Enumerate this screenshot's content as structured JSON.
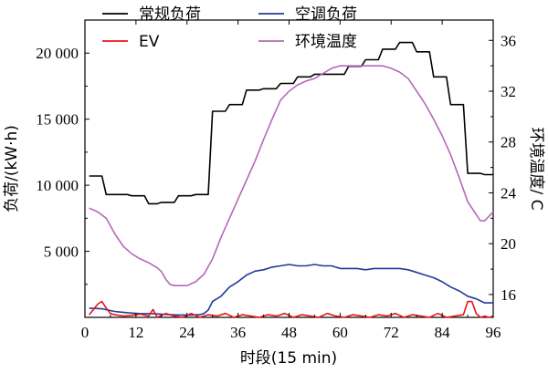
{
  "chart_data": {
    "type": "line",
    "xlabel": "时段(15 min)",
    "ylabel": "负荷/(kW·h)",
    "y2label": "环境温度/ C",
    "xlim": [
      0,
      96
    ],
    "ylim": [
      0,
      22500
    ],
    "y2lim": [
      14.2,
      37.6
    ],
    "x_ticks": [
      0,
      12,
      24,
      36,
      48,
      60,
      72,
      84,
      96
    ],
    "x_tick_labels": [
      "0",
      "12",
      "24",
      "36",
      "48",
      "60",
      "72",
      "84",
      "96"
    ],
    "y_ticks": [
      5000,
      10000,
      15000,
      20000
    ],
    "y_tick_labels": [
      "5 000",
      "10 000",
      "15 000",
      "20 000"
    ],
    "y2_ticks": [
      16,
      20,
      24,
      28,
      32,
      36
    ],
    "y2_tick_labels": [
      "16",
      "20",
      "24",
      "28",
      "32",
      "36"
    ],
    "legend_position": "top",
    "series": [
      {
        "name": "常规负荷",
        "axis": "left",
        "color": "#000000",
        "x": [
          1,
          2,
          3,
          4,
          5,
          6,
          7,
          8,
          9,
          10,
          11,
          12,
          13,
          14,
          15,
          16,
          17,
          18,
          19,
          20,
          21,
          22,
          23,
          24,
          25,
          26,
          27,
          28,
          29,
          30,
          31,
          32,
          33,
          34,
          35,
          36,
          37,
          38,
          39,
          40,
          41,
          42,
          43,
          44,
          45,
          46,
          47,
          48,
          49,
          50,
          51,
          52,
          53,
          54,
          55,
          56,
          57,
          58,
          59,
          60,
          61,
          62,
          63,
          64,
          65,
          66,
          67,
          68,
          69,
          70,
          71,
          72,
          73,
          74,
          75,
          76,
          77,
          78,
          79,
          80,
          81,
          82,
          83,
          84,
          85,
          86,
          87,
          88,
          89,
          90,
          91,
          92,
          93,
          94,
          95,
          96
        ],
        "values": [
          10700,
          10700,
          10700,
          10700,
          9300,
          9300,
          9300,
          9300,
          9300,
          9300,
          9200,
          9200,
          9200,
          9200,
          8600,
          8600,
          8600,
          8700,
          8700,
          8700,
          8700,
          9200,
          9200,
          9200,
          9200,
          9300,
          9300,
          9300,
          9300,
          15600,
          15600,
          15600,
          15600,
          16100,
          16100,
          16100,
          16100,
          17200,
          17200,
          17200,
          17200,
          17300,
          17300,
          17300,
          17300,
          17700,
          17700,
          17700,
          17700,
          18200,
          18200,
          18200,
          18200,
          18400,
          18400,
          18400,
          18400,
          18400,
          18400,
          18400,
          18400,
          19000,
          19000,
          19000,
          19000,
          19500,
          19500,
          19500,
          19500,
          20300,
          20300,
          20300,
          20300,
          20800,
          20800,
          20800,
          20800,
          20100,
          20100,
          20100,
          20100,
          18200,
          18200,
          18200,
          18200,
          16100,
          16100,
          16100,
          16100,
          10900,
          10900,
          10900,
          10900,
          10800,
          10800,
          10800
        ]
      },
      {
        "name": "空调负荷",
        "axis": "left",
        "color": "#1f3b99",
        "x": [
          1,
          4,
          7,
          10,
          13,
          16,
          19,
          22,
          25,
          27,
          28,
          29,
          30,
          32,
          34,
          36,
          38,
          40,
          42,
          44,
          46,
          48,
          50,
          52,
          54,
          56,
          58,
          60,
          62,
          64,
          66,
          68,
          70,
          72,
          74,
          76,
          78,
          80,
          82,
          84,
          86,
          88,
          90,
          92,
          94,
          96
        ],
        "values": [
          700,
          650,
          450,
          350,
          280,
          280,
          220,
          180,
          180,
          200,
          300,
          550,
          1200,
          1600,
          2300,
          2700,
          3200,
          3500,
          3600,
          3800,
          3900,
          4000,
          3900,
          3900,
          4000,
          3900,
          3900,
          3700,
          3700,
          3700,
          3600,
          3700,
          3700,
          3700,
          3700,
          3600,
          3400,
          3200,
          3000,
          2700,
          2300,
          2000,
          1600,
          1400,
          1100,
          1100
        ]
      },
      {
        "name": "EV",
        "axis": "left",
        "color": "#e8141b",
        "x": [
          1,
          3,
          4,
          5,
          6,
          7,
          9,
          11,
          13,
          15,
          16,
          17,
          19,
          21,
          23,
          25,
          27,
          29,
          31,
          33,
          35,
          37,
          39,
          41,
          43,
          45,
          47,
          49,
          51,
          53,
          55,
          57,
          59,
          61,
          63,
          65,
          67,
          69,
          71,
          73,
          75,
          77,
          79,
          81,
          83,
          85,
          87,
          89,
          90,
          91,
          92,
          93,
          94,
          95,
          96
        ],
        "values": [
          200,
          1000,
          1200,
          700,
          300,
          200,
          100,
          150,
          250,
          100,
          600,
          0,
          300,
          100,
          0,
          300,
          0,
          200,
          100,
          300,
          0,
          200,
          100,
          0,
          200,
          100,
          300,
          0,
          200,
          100,
          0,
          300,
          100,
          0,
          200,
          100,
          0,
          200,
          100,
          300,
          0,
          200,
          100,
          0,
          300,
          0,
          100,
          200,
          1200,
          1200,
          300,
          0,
          100,
          0,
          100
        ]
      },
      {
        "name": "环境温度",
        "axis": "right",
        "color": "#b668b8",
        "x": [
          1,
          3,
          5,
          7,
          9,
          11,
          13,
          15,
          17,
          18,
          19,
          20,
          21,
          22,
          24,
          26,
          28,
          30,
          32,
          34,
          36,
          38,
          40,
          42,
          44,
          46,
          48,
          50,
          52,
          54,
          56,
          58,
          60,
          62,
          64,
          66,
          68,
          70,
          72,
          74,
          76,
          78,
          80,
          82,
          84,
          86,
          88,
          90,
          92,
          93,
          94,
          96
        ],
        "values": [
          22.8,
          22.5,
          22.0,
          20.8,
          19.8,
          19.2,
          18.8,
          18.5,
          18.1,
          17.8,
          17.2,
          16.8,
          16.7,
          16.7,
          16.7,
          17.0,
          17.6,
          18.8,
          20.5,
          22.0,
          23.5,
          25.0,
          26.5,
          28.2,
          29.8,
          31.3,
          32.0,
          32.5,
          32.8,
          33.0,
          33.4,
          33.8,
          34.0,
          34.0,
          34.0,
          34.0,
          34.0,
          34.0,
          33.8,
          33.5,
          33.0,
          32.0,
          31.0,
          29.8,
          28.5,
          27.0,
          25.2,
          23.3,
          22.3,
          21.8,
          21.8,
          22.5
        ]
      }
    ]
  }
}
